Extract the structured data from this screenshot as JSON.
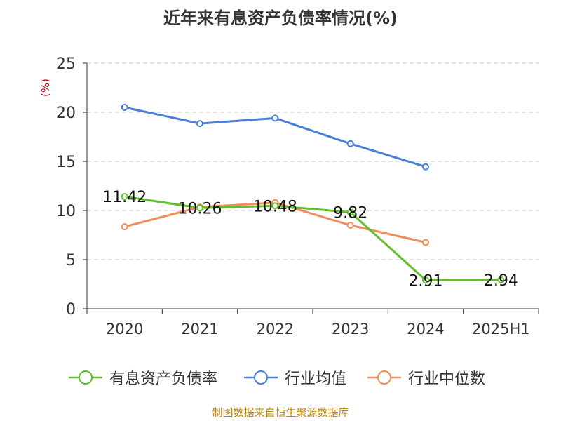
{
  "chart_data": {
    "type": "line",
    "title": "近年来有息资产负债率情况(%)",
    "ylabel": "(%)",
    "xlabel": "",
    "categories": [
      "2020",
      "2021",
      "2022",
      "2023",
      "2024",
      "2025H1"
    ],
    "ylim": [
      0,
      25
    ],
    "yticks": [
      0,
      5,
      10,
      15,
      20,
      25
    ],
    "grid": true,
    "legend_position": "bottom",
    "series": [
      {
        "name": "有息资产负债率",
        "color": "#5fc02b",
        "values": [
          11.42,
          10.26,
          10.48,
          9.82,
          2.91,
          2.94
        ],
        "labels": [
          "11.42",
          "10.26",
          "10.48",
          "9.82",
          "2.91",
          "2.94"
        ]
      },
      {
        "name": "行业均值",
        "color": "#4a7fd9",
        "values": [
          20.5,
          18.85,
          19.4,
          16.8,
          14.45,
          null
        ]
      },
      {
        "name": "行业中位数",
        "color": "#f28c5a",
        "values": [
          8.35,
          10.35,
          10.8,
          8.5,
          6.75,
          null
        ]
      }
    ]
  },
  "source": "制图数据来自恒生聚源数据库",
  "colors": {
    "axis": "#333333",
    "grid": "#cccccc",
    "ylabel": "#cc0000",
    "source": "#b8860b"
  }
}
